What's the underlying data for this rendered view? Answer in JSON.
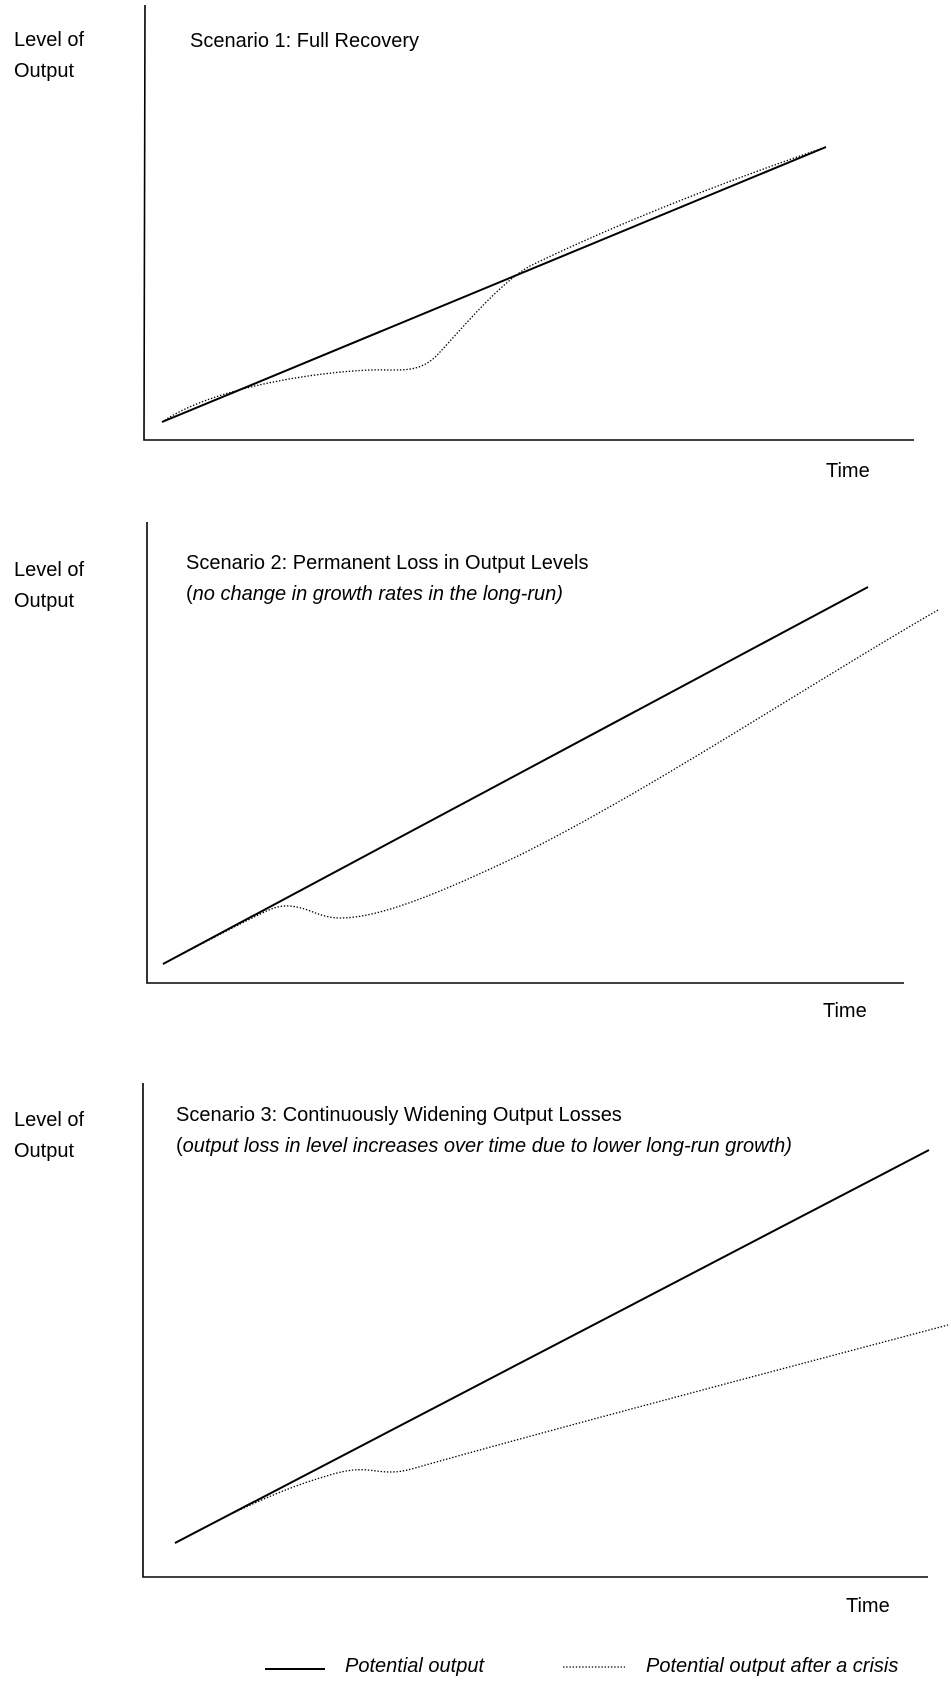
{
  "panels": [
    {
      "ylabel_line1": "Level of",
      "ylabel_line2": "Output",
      "title": "Scenario 1: Full Recovery",
      "subtitle": "",
      "xlabel": "Time"
    },
    {
      "ylabel_line1": "Level of",
      "ylabel_line2": "Output",
      "title": "Scenario 2: Permanent Loss in Output Levels",
      "subtitle_open": "(",
      "subtitle": "no change in growth rates in the long-run)",
      "xlabel": "Time"
    },
    {
      "ylabel_line1": "Level of",
      "ylabel_line2": "Output",
      "title": "Scenario 3: Continuously Widening Output Losses",
      "subtitle_open": "(",
      "subtitle": "output loss in level increases over time due to lower long-run growth)",
      "xlabel": "Time"
    }
  ],
  "legend": {
    "solid_label": "Potential output",
    "dotted_label": "Potential output after a crisis"
  }
}
